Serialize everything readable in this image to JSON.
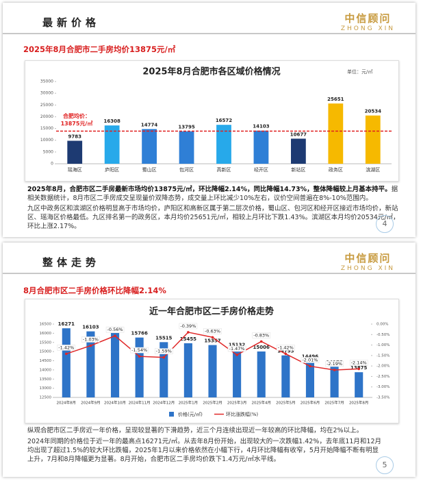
{
  "slides": [
    {
      "header": "最新价格",
      "logo": {
        "cn": "中信顾问",
        "en": "ZHONG XIN"
      },
      "subtitle": "2025年8月合肥市二手房均价13875元/㎡",
      "paragraphs": [
        {
          "bold": "2025年8月，合肥市区二手房最新市场均价13875元/㎡，环比降幅2.14%，同比降幅14.73%，整体降幅较上月基本持平。",
          "text": "据相关数据统计，8月市区二手房成交呈现量价双降态势，成交量上环比减少10%左右，议价空间普遍在8%-10%范围内。"
        },
        {
          "text": "九区中政务区和滨湖区价格明显高于市场均价，庐阳区和高新区属于第二层次价格，蜀山区、包河区和经开区接近市场均价，新站区、瑶海区价格最低。九区排名第一的政务区，本月均价25651元/㎡，相较上月环比下跌1.43%。滨湖区本月均价20534元/㎡，环比上涨2.17%。"
        }
      ],
      "page": "4"
    },
    {
      "header": "整体走势",
      "logo": {
        "cn": "中信顾问",
        "en": "ZHONG XIN"
      },
      "subtitle": "8月合肥市区二手房价格环比降幅2.14%",
      "paragraphs": [
        {
          "text": "纵观合肥市区二手房近一年价格，呈现较显著的下滑趋势，近三个月连续出现近一年较高的环比降幅，均在2%以上。"
        },
        {
          "text": "2024年同期的价格位于近一年的最高点16271元/㎡。从去年8月份开始，出现较大的一次跌幅1.42%，去年底11月和12月均出现了超过1.5%的较大环比跌幅，2025年1月以来价格依然在小幅下行，4月环比降幅有收窄，5月开始降幅不断有明显上升，7月和8月降幅更为显著。8月开始，合肥市区二手房均价跌下1.4万元/㎡水平线。"
        }
      ],
      "page": "5"
    }
  ],
  "chart_data": [
    {
      "type": "bar",
      "title": "2025年8月合肥市各区域价格情况",
      "unit": "单位：元/㎡",
      "categories": [
        "瑶海区",
        "庐阳区",
        "蜀山区",
        "包河区",
        "高新区",
        "经开区",
        "新站区",
        "政务区",
        "滨湖区"
      ],
      "values": [
        9783,
        16308,
        14774,
        13795,
        16572,
        14103,
        10677,
        25651,
        20534
      ],
      "colors": [
        "#1d3a72",
        "#27a9ea",
        "#2f7fd6",
        "#2f7fd6",
        "#27a9ea",
        "#2f7fd6",
        "#1d3a72",
        "#f6b900",
        "#f6b900"
      ],
      "ylim": [
        0,
        35000
      ],
      "yticks": [
        0,
        5000,
        10000,
        15000,
        20000,
        25000,
        30000,
        35000
      ],
      "reference_line": {
        "value": 13875,
        "label": "合肥均价：",
        "value_label": "13875元/㎡",
        "color": "#e02020"
      }
    },
    {
      "type": "combo",
      "title": "近一年合肥市区二手房价格走势",
      "categories": [
        "2024年8月",
        "2024年9月",
        "2024年10月",
        "2024年11月",
        "2024年12月",
        "2025年1月",
        "2025年2月",
        "2025年3月",
        "2025年4月",
        "2025年5月",
        "2025年6月",
        "2025年7月",
        "2025年8月"
      ],
      "series": [
        {
          "name": "价格(元/㎡)",
          "type": "bar",
          "color": "#2e74c8",
          "values": [
            16271,
            16103,
            16013,
            15766,
            15515,
            15455,
            15357,
            15132,
            15006,
            14793,
            14496,
            14178,
            13875
          ]
        },
        {
          "name": "环比涨跌幅(%)",
          "type": "line",
          "axis": "y2",
          "color": "#e02828",
          "values": [
            -1.42,
            -1.03,
            -0.56,
            -1.54,
            -1.59,
            -0.39,
            -0.63,
            -1.47,
            -0.83,
            -1.42,
            -2.01,
            -2.19,
            -2.14
          ],
          "value_labels": [
            "-1.42%",
            "-1.03%",
            "-0.56%",
            "-1.54%",
            "-1.59%",
            "-0.39%",
            "-0.63%",
            "-1.47%",
            "-0.83%",
            "-1.42%",
            "-2.01%",
            "-2.19%",
            "-2.14%"
          ]
        }
      ],
      "ylim": [
        12500,
        16500
      ],
      "yticks": [
        12500,
        13000,
        13500,
        14000,
        14500,
        15000,
        15500,
        16000,
        16500
      ],
      "y2lim": [
        -3.5,
        0
      ],
      "y2ticks": [
        {
          "value": 0,
          "label": "0.00%"
        },
        {
          "value": -0.5,
          "label": "-0.50%"
        },
        {
          "value": -1,
          "label": "-1.00%"
        },
        {
          "value": -1.5,
          "label": "-1.50%"
        },
        {
          "value": -2,
          "label": "-2.00%"
        },
        {
          "value": -2.5,
          "label": "-2.50%"
        },
        {
          "value": -3,
          "label": "-3.00%"
        },
        {
          "value": -3.5,
          "label": "-3.50%"
        }
      ]
    }
  ]
}
